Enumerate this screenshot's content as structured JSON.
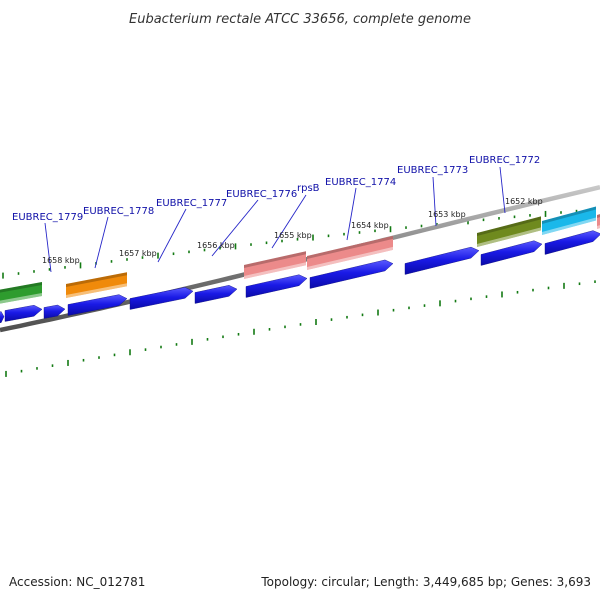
{
  "title": "Eubacterium rectale ATCC 33656, complete genome",
  "footer": {
    "accession": "Accession: NC_012781",
    "summary": "Topology: circular; Length: 3,449,685 bp; Genes: 3,693"
  },
  "colors": {
    "backbone": "#7a7a7a",
    "tick": "#137a13",
    "gene_blue": "#1a1ae6",
    "label_text": "#1010a8",
    "leader_line": "#2626c8"
  },
  "kbp_labels": [
    "1658 kbp",
    "1657 kbp",
    "1656 kbp",
    "1655 kbp",
    "1654 kbp",
    "1653 kbp",
    "1652 kbp"
  ],
  "gene_labels": [
    "EUBREC_1779",
    "EUBREC_1778",
    "EUBREC_1777",
    "EUBREC_1776",
    "rpsB",
    "EUBREC_1774",
    "EUBREC_1773",
    "EUBREC_1772"
  ],
  "features": [
    {
      "name": "feature-green",
      "color": "#2e9c2e"
    },
    {
      "name": "feature-orange",
      "color": "#f08a0a"
    },
    {
      "name": "feature-pink-1",
      "color": "#ec8a8a"
    },
    {
      "name": "feature-pink-2",
      "color": "#ec8a8a"
    },
    {
      "name": "feature-olive",
      "color": "#6f8a1e"
    },
    {
      "name": "feature-cyan",
      "color": "#1ab8ea"
    },
    {
      "name": "feature-pink-3",
      "color": "#ec8a8a"
    }
  ]
}
